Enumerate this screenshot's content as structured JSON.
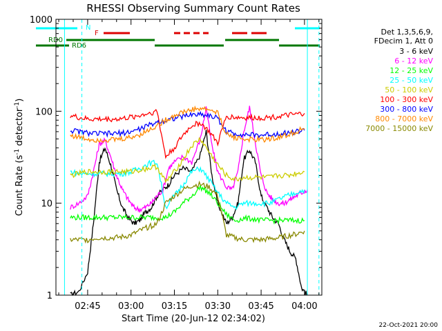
{
  "chart_data": {
    "type": "line",
    "title": "RHESSI Observing Summary Count Rates",
    "xlabel": "Start Time (20-Jun-12 02:34:02)",
    "ylabel_text": "Count Rate (s",
    "ylabel_sup": "-1",
    "ylabel_tail": " detector",
    "ylabel_sup2": "-1",
    "ylabel_close": ")",
    "y_scale": "log",
    "ylim": [
      1,
      1000
    ],
    "xlim": [
      "02:34:02",
      "04:06:00"
    ],
    "x_ticks": [
      "02:45",
      "03:00",
      "03:15",
      "03:30",
      "03:45",
      "04:00"
    ],
    "y_ticks": [
      "1",
      "10",
      "100",
      "1000"
    ],
    "grid": false,
    "legend_position": "right",
    "legend_header": [
      "Det 1,3,5,6,9,",
      "FDecim 1, Att 0"
    ],
    "night_boundaries": [
      "02:37:00",
      "04:01:00"
    ],
    "saa_boundaries": [
      "02:43:00",
      "04:05:00"
    ],
    "series": [
      {
        "name": "3 - 6 keV",
        "color": "#000000",
        "x": [
          "02:39",
          "02:42",
          "02:45",
          "02:47",
          "02:49",
          "02:51",
          "02:53",
          "02:55",
          "02:57",
          "02:59",
          "03:01",
          "03:03",
          "03:05",
          "03:07",
          "03:09",
          "03:11",
          "03:13",
          "03:15",
          "03:18",
          "03:21",
          "03:24",
          "03:26",
          "03:28",
          "03:30",
          "03:33",
          "03:35",
          "03:37",
          "03:39",
          "03:41",
          "03:43",
          "03:45",
          "03:47",
          "03:49",
          "03:51",
          "03:53",
          "03:55",
          "03:57",
          "03:59",
          "04:01"
        ],
        "values": [
          1.0,
          1.1,
          1.8,
          6,
          28,
          40,
          26,
          14,
          9,
          7,
          6,
          6.5,
          8,
          9,
          12,
          14,
          16,
          20,
          24,
          22,
          34,
          60,
          20,
          10,
          6,
          7,
          10,
          30,
          38,
          28,
          12,
          9,
          7,
          6,
          4,
          3,
          2.5,
          1.2,
          1.0
        ]
      },
      {
        "name": "6 - 12 keV",
        "color": "#ff00ff",
        "x": [
          "02:39",
          "02:42",
          "02:45",
          "02:47",
          "02:49",
          "02:51",
          "02:53",
          "02:55",
          "02:57",
          "02:59",
          "03:01",
          "03:03",
          "03:05",
          "03:07",
          "03:09",
          "03:11",
          "03:13",
          "03:15",
          "03:18",
          "03:21",
          "03:24",
          "03:26",
          "03:28",
          "03:30",
          "03:33",
          "03:35",
          "03:37",
          "03:39",
          "03:41",
          "03:43",
          "03:45",
          "03:47",
          "03:49",
          "03:51",
          "03:53",
          "03:55",
          "03:57",
          "03:59",
          "04:01"
        ],
        "values": [
          9,
          10,
          12,
          22,
          44,
          48,
          32,
          20,
          14,
          11,
          9,
          8.5,
          9,
          10,
          12,
          14,
          24,
          28,
          32,
          28,
          50,
          110,
          42,
          22,
          15,
          14,
          22,
          60,
          110,
          46,
          20,
          13,
          11,
          10,
          10,
          11,
          12,
          13,
          14
        ]
      },
      {
        "name": "12 - 25 keV",
        "color": "#00ff00",
        "x": [
          "02:39",
          "02:42",
          "02:45",
          "02:48",
          "02:51",
          "02:54",
          "02:57",
          "03:00",
          "03:03",
          "03:06",
          "03:09",
          "03:12",
          "03:15",
          "03:18",
          "03:21",
          "03:24",
          "03:27",
          "03:30",
          "03:33",
          "03:36",
          "03:39",
          "03:42",
          "03:45",
          "03:48",
          "03:51",
          "03:54",
          "03:57",
          "04:00"
        ],
        "values": [
          7,
          7,
          7,
          7,
          7,
          7,
          7,
          7,
          7,
          7,
          7,
          7,
          8,
          10,
          12,
          15,
          13,
          10,
          7.5,
          6.5,
          6.8,
          6.8,
          6.5,
          6.5,
          6.5,
          6.5,
          6.5,
          6.5
        ]
      },
      {
        "name": "25 - 50 keV",
        "color": "#00ffff",
        "x": [
          "02:39",
          "02:42",
          "02:45",
          "02:48",
          "02:51",
          "02:54",
          "02:57",
          "03:00",
          "03:03",
          "03:06",
          "03:09",
          "03:12",
          "03:15",
          "03:18",
          "03:21",
          "03:24",
          "03:27",
          "03:30",
          "03:33",
          "03:36",
          "03:39",
          "03:42",
          "03:45",
          "03:48",
          "03:51",
          "03:54",
          "03:57",
          "04:00"
        ],
        "values": [
          22,
          21,
          21,
          21,
          21,
          21,
          21,
          22,
          24,
          27,
          28,
          9,
          12,
          16,
          22,
          24,
          18,
          13,
          10,
          9,
          10,
          10,
          10,
          10,
          11,
          12,
          13,
          14
        ]
      },
      {
        "name": "50 - 100 keV",
        "color": "#cccc00",
        "x": [
          "02:39",
          "02:42",
          "02:45",
          "02:48",
          "02:51",
          "02:54",
          "02:57",
          "03:00",
          "03:03",
          "03:06",
          "03:09",
          "03:12",
          "03:15",
          "03:18",
          "03:21",
          "03:24",
          "03:27",
          "03:30",
          "03:33",
          "03:36",
          "03:39",
          "03:42",
          "03:45",
          "03:48",
          "03:51",
          "03:54",
          "03:57",
          "04:00"
        ],
        "values": [
          20,
          21,
          22,
          22,
          22,
          22,
          22,
          22,
          23,
          24,
          25,
          17,
          22,
          30,
          42,
          50,
          36,
          26,
          20,
          18,
          19,
          19,
          19,
          19,
          20,
          20,
          21,
          22
        ]
      },
      {
        "name": "100 - 300 keV",
        "color": "#ff0000",
        "x": [
          "02:39",
          "02:42",
          "02:45",
          "02:48",
          "02:51",
          "02:54",
          "02:57",
          "03:00",
          "03:03",
          "03:06",
          "03:09",
          "03:12",
          "03:15",
          "03:18",
          "03:21",
          "03:24",
          "03:27",
          "03:30",
          "03:33",
          "03:36",
          "03:39",
          "03:42",
          "03:45",
          "03:48",
          "03:51",
          "03:54",
          "03:57",
          "04:00"
        ],
        "values": [
          90,
          85,
          82,
          82,
          82,
          82,
          83,
          86,
          90,
          95,
          100,
          32,
          40,
          55,
          70,
          75,
          60,
          45,
          88,
          86,
          85,
          85,
          85,
          86,
          88,
          90,
          92,
          95
        ]
      },
      {
        "name": "300 - 800 keV",
        "color": "#0000ff",
        "x": [
          "02:39",
          "02:42",
          "02:45",
          "02:48",
          "02:51",
          "02:54",
          "02:57",
          "03:00",
          "03:03",
          "03:06",
          "03:09",
          "03:12",
          "03:15",
          "03:18",
          "03:21",
          "03:24",
          "03:27",
          "03:30",
          "03:33",
          "03:36",
          "03:39",
          "03:42",
          "03:45",
          "03:48",
          "03:51",
          "03:54",
          "03:57",
          "04:00"
        ],
        "values": [
          62,
          60,
          58,
          57,
          57,
          57,
          58,
          60,
          64,
          70,
          76,
          80,
          84,
          88,
          92,
          93,
          90,
          84,
          60,
          57,
          56,
          55,
          55,
          56,
          57,
          58,
          60,
          62
        ]
      },
      {
        "name": "800 - 7000 keV",
        "color": "#ff8800",
        "x": [
          "02:39",
          "02:42",
          "02:45",
          "02:48",
          "02:51",
          "02:54",
          "02:57",
          "03:00",
          "03:03",
          "03:06",
          "03:09",
          "03:12",
          "03:15",
          "03:18",
          "03:21",
          "03:24",
          "03:27",
          "03:30",
          "03:33",
          "03:36",
          "03:39",
          "03:42",
          "03:45",
          "03:48",
          "03:51",
          "03:54",
          "03:57",
          "04:00"
        ],
        "values": [
          55,
          52,
          50,
          49,
          49,
          49,
          50,
          52,
          56,
          62,
          70,
          80,
          90,
          98,
          104,
          107,
          104,
          96,
          56,
          52,
          50,
          49,
          49,
          50,
          52,
          55,
          60,
          65
        ]
      },
      {
        "name": "7000 - 15000 keV",
        "color": "#888800",
        "x": [
          "02:39",
          "02:42",
          "02:45",
          "02:48",
          "02:51",
          "02:54",
          "02:57",
          "03:00",
          "03:03",
          "03:06",
          "03:09",
          "03:12",
          "03:15",
          "03:18",
          "03:21",
          "03:24",
          "03:27",
          "03:30",
          "03:33",
          "03:36",
          "03:39",
          "03:42",
          "03:45",
          "03:48",
          "03:51",
          "03:54",
          "03:57",
          "04:00"
        ],
        "values": [
          4,
          4,
          4,
          4.2,
          4.2,
          4.2,
          4.3,
          4.5,
          5,
          5.5,
          6,
          10,
          12,
          14,
          15.5,
          16,
          15,
          12,
          4.5,
          4.2,
          4.0,
          4.0,
          4.0,
          4.1,
          4.2,
          4.4,
          4.6,
          5
        ]
      }
    ],
    "flags": [
      {
        "label": "N",
        "color": "#00ffff"
      },
      {
        "label": "F",
        "color": "#dd0000"
      },
      {
        "label": "RD0",
        "color": "#007700"
      },
      {
        "label": "RD6",
        "color": "#007700"
      }
    ],
    "footer_date": "22-Oct-2021 20:00"
  }
}
